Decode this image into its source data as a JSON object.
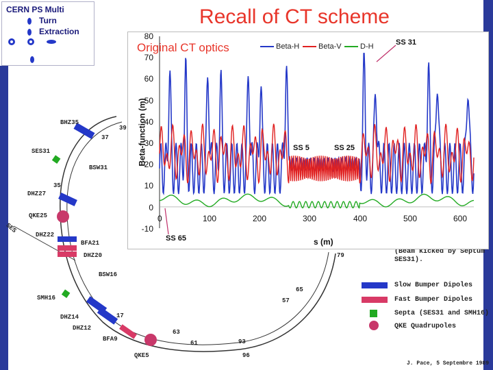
{
  "slide": {
    "title": "Recall of CT scheme"
  },
  "logo": {
    "line1": "CERN PS Multi",
    "line2": "Turn",
    "line3": "Extraction"
  },
  "plot": {
    "label": "Original CT optics",
    "legend": [
      "Beta-H",
      "Beta-V",
      "D-H"
    ],
    "ylabel": "Beta-function (m)",
    "xlabel": "s (m)",
    "yticks": [
      "80",
      "70",
      "60",
      "50",
      "40",
      "30",
      "20",
      "10",
      "0",
      "-10"
    ],
    "xticks": [
      "0",
      "100",
      "200",
      "300",
      "400",
      "500",
      "600"
    ],
    "annotations": {
      "ss31": "SS 31",
      "ss5": "SS 5",
      "ss25": "SS 25",
      "ss65": "SS 65"
    }
  },
  "ring": {
    "labels": [
      "BHZ35",
      "SES31",
      "DHZ27",
      "QKE25",
      "DHZ22",
      "BFA21",
      "DHZ20",
      "BSW16",
      "SMH16",
      "DHZ14",
      "DHZ12",
      "BFA9",
      "QKE5",
      "BSW31",
      "SES"
    ],
    "numbers": [
      "39",
      "37",
      "35",
      "79",
      "65",
      "57",
      "63",
      "61",
      "93",
      "96",
      "17"
    ]
  },
  "legend2": {
    "note1": "(Beam kicked by Septum",
    "note2": "SES31).",
    "items": [
      {
        "label": "Slow Bumper Dipoles",
        "color": "#2438c8"
      },
      {
        "label": "Fast Bumper Dipoles",
        "color": "#d83a66"
      },
      {
        "label": "Septa (SES31 and SMH16)",
        "color": "#22aa22"
      },
      {
        "label": "QKE Quadrupoles",
        "color": "#c8386a"
      }
    ],
    "footer": "J. Pace, 5 Septembre 1989"
  },
  "colors": {
    "accent": "#e8352a",
    "betah": "#2438c8",
    "betav": "#e02020",
    "dh": "#22aa22",
    "frame": "#2a3a9a"
  },
  "chart_data": {
    "type": "line",
    "title": "Original CT optics",
    "xlabel": "s (m)",
    "ylabel": "Beta-function (m)",
    "xlim": [
      0,
      628
    ],
    "ylim": [
      -10,
      80
    ],
    "series": [
      {
        "name": "Beta-H",
        "peak_x": [
          20,
          52,
          97,
          122,
          178,
          202,
          253,
          275,
          409,
          432,
          537,
          555,
          616,
          636
        ],
        "peak_y": [
          67,
          65,
          67,
          63,
          67,
          62,
          70,
          68,
          70,
          63,
          70,
          69,
          66,
          63
        ]
      },
      {
        "name": "Beta-V"
      },
      {
        "name": "D-H"
      }
    ],
    "annotations": [
      {
        "text": "SS 31",
        "x": 535
      },
      {
        "text": "SS 5",
        "x": 285
      },
      {
        "text": "SS 25",
        "x": 380
      },
      {
        "text": "SS 65",
        "x": 2
      }
    ]
  }
}
